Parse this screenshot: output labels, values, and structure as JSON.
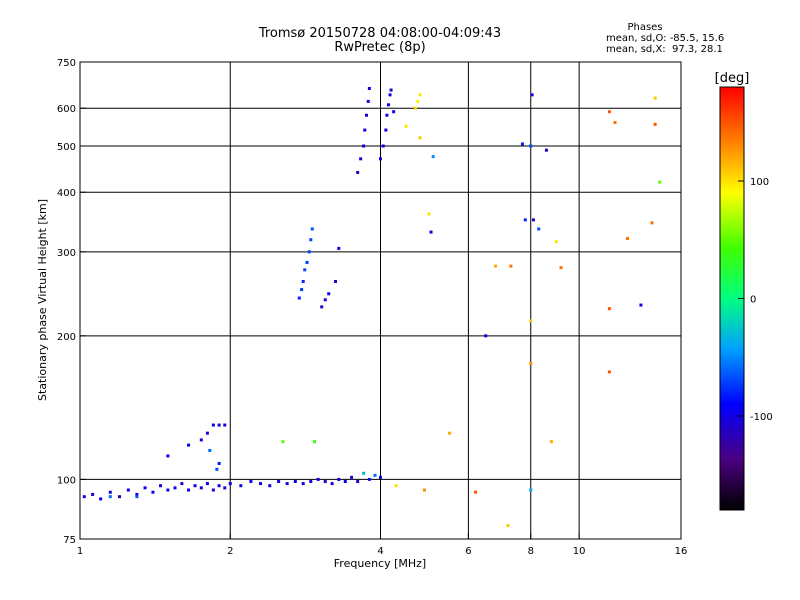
{
  "title_line1": "Tromsø 20150728 04:08:00-04:09:43",
  "title_line2": "RwPretec (8p)",
  "phase_info": {
    "heading": "Phases",
    "line_o": "mean, sd,O: -85.5, 15.6",
    "line_x": "mean, sd,X:  97.3, 28.1"
  },
  "colorbar": {
    "unit_label": "[deg]",
    "ticks": [
      {
        "label": "100",
        "value": 100
      },
      {
        "label": "0",
        "value": 0
      },
      {
        "label": "-100",
        "value": -100
      }
    ],
    "range": [
      -180,
      180
    ]
  },
  "chart_data": {
    "type": "scatter",
    "xlabel": "Frequency [MHz]",
    "ylabel": "Stationary phase Virtual Height [km]",
    "xscale": "log",
    "yscale": "log",
    "xlim": [
      1,
      16
    ],
    "ylim": [
      75,
      750
    ],
    "xticks": [
      {
        "label": "1",
        "value": 1
      },
      {
        "label": "2",
        "value": 2
      },
      {
        "label": "4",
        "value": 4
      },
      {
        "label": "6",
        "value": 6
      },
      {
        "label": "8",
        "value": 8
      },
      {
        "label": "10",
        "value": 10
      },
      {
        "label": "16",
        "value": 16
      }
    ],
    "yticks": [
      {
        "label": "75",
        "value": 75
      },
      {
        "label": "100",
        "value": 100
      },
      {
        "label": "200",
        "value": 200
      },
      {
        "label": "300",
        "value": 300
      },
      {
        "label": "400",
        "value": 400
      },
      {
        "label": "500",
        "value": 500
      },
      {
        "label": "600",
        "value": 600
      },
      {
        "label": "750",
        "value": 750
      }
    ],
    "grid_x": [
      2,
      4,
      6,
      8,
      10
    ],
    "grid_y": [
      100,
      200,
      300,
      400,
      500,
      600
    ],
    "points": [
      [
        1.02,
        92,
        -100
      ],
      [
        1.06,
        93,
        -105
      ],
      [
        1.1,
        91,
        -95
      ],
      [
        1.15,
        94,
        -100
      ],
      [
        1.2,
        92,
        -110
      ],
      [
        1.25,
        95,
        -98
      ],
      [
        1.3,
        93,
        -102
      ],
      [
        1.35,
        96,
        -95
      ],
      [
        1.4,
        94,
        -100
      ],
      [
        1.45,
        97,
        -105
      ],
      [
        1.5,
        95,
        -98
      ],
      [
        1.55,
        96,
        -100
      ],
      [
        1.6,
        98,
        -102
      ],
      [
        1.65,
        95,
        -96
      ],
      [
        1.7,
        97,
        -100
      ],
      [
        1.75,
        96,
        -104
      ],
      [
        1.8,
        98,
        -99
      ],
      [
        1.85,
        95,
        -101
      ],
      [
        1.9,
        97,
        -97
      ],
      [
        1.95,
        96,
        -103
      ],
      [
        2.0,
        98,
        -100
      ],
      [
        2.1,
        97,
        -95
      ],
      [
        2.2,
        99,
        -100
      ],
      [
        2.3,
        98,
        -102
      ],
      [
        2.4,
        97,
        -98
      ],
      [
        2.5,
        99,
        -100
      ],
      [
        2.6,
        98,
        -104
      ],
      [
        2.7,
        99,
        -96
      ],
      [
        2.8,
        98,
        -100
      ],
      [
        2.9,
        99,
        -102
      ],
      [
        3.0,
        100,
        -98
      ],
      [
        3.1,
        99,
        -110
      ],
      [
        3.2,
        98,
        -105
      ],
      [
        3.3,
        100,
        -100
      ],
      [
        3.4,
        99,
        -95
      ],
      [
        3.5,
        101,
        -105
      ],
      [
        3.6,
        99,
        -100
      ],
      [
        3.7,
        103,
        -30
      ],
      [
        3.8,
        100,
        -85
      ],
      [
        3.9,
        102,
        -60
      ],
      [
        4.0,
        101,
        -95
      ],
      [
        1.15,
        92,
        -60
      ],
      [
        1.3,
        92,
        -65
      ],
      [
        1.5,
        112,
        -90
      ],
      [
        1.65,
        118,
        -95
      ],
      [
        1.75,
        121,
        -100
      ],
      [
        1.8,
        125,
        -102
      ],
      [
        1.85,
        130,
        -100
      ],
      [
        1.9,
        130,
        -105
      ],
      [
        1.95,
        130,
        -98
      ],
      [
        1.82,
        115,
        -60
      ],
      [
        1.88,
        105,
        -70
      ],
      [
        1.9,
        108,
        -85
      ],
      [
        2.55,
        120,
        50
      ],
      [
        2.95,
        120,
        40
      ],
      [
        3.05,
        230,
        -110
      ],
      [
        3.1,
        238,
        -105
      ],
      [
        3.15,
        245,
        -95
      ],
      [
        3.25,
        260,
        -105
      ],
      [
        3.3,
        305,
        -100
      ],
      [
        2.75,
        240,
        -80
      ],
      [
        2.78,
        250,
        -75
      ],
      [
        2.8,
        260,
        -80
      ],
      [
        2.82,
        275,
        -70
      ],
      [
        2.85,
        285,
        -75
      ],
      [
        2.88,
        300,
        -70
      ],
      [
        2.9,
        318,
        -72
      ],
      [
        2.92,
        335,
        -68
      ],
      [
        3.6,
        440,
        -110
      ],
      [
        3.65,
        470,
        -105
      ],
      [
        3.7,
        500,
        -102
      ],
      [
        3.72,
        540,
        -100
      ],
      [
        3.75,
        580,
        -105
      ],
      [
        3.78,
        620,
        -100
      ],
      [
        3.8,
        660,
        -102
      ],
      [
        4.0,
        470,
        -105
      ],
      [
        4.05,
        500,
        -100
      ],
      [
        4.1,
        540,
        -102
      ],
      [
        4.12,
        580,
        -100
      ],
      [
        4.15,
        610,
        -98
      ],
      [
        4.18,
        640,
        -100
      ],
      [
        4.2,
        655,
        -102
      ],
      [
        4.25,
        590,
        -95
      ],
      [
        4.5,
        550,
        100
      ],
      [
        4.7,
        600,
        105
      ],
      [
        4.75,
        620,
        95
      ],
      [
        4.8,
        640,
        100
      ],
      [
        4.8,
        520,
        110
      ],
      [
        5.0,
        360,
        100
      ],
      [
        5.05,
        330,
        -100
      ],
      [
        5.1,
        475,
        -50
      ],
      [
        5.5,
        125,
        120
      ],
      [
        6.5,
        200,
        -100
      ],
      [
        6.8,
        280,
        120
      ],
      [
        7.3,
        280,
        140
      ],
      [
        7.7,
        505,
        -80
      ],
      [
        8.0,
        500,
        -70
      ],
      [
        8.05,
        640,
        -100
      ],
      [
        8.1,
        350,
        -110
      ],
      [
        8.3,
        335,
        -70
      ],
      [
        8.6,
        490,
        -110
      ],
      [
        8.8,
        120,
        120
      ],
      [
        9.0,
        315,
        100
      ],
      [
        9.2,
        278,
        140
      ],
      [
        7.8,
        350,
        -80
      ],
      [
        8.0,
        215,
        110
      ],
      [
        8.0,
        175,
        130
      ],
      [
        8.0,
        95,
        -40
      ],
      [
        11.5,
        590,
        150
      ],
      [
        11.8,
        560,
        140
      ],
      [
        11.5,
        228,
        150
      ],
      [
        11.5,
        168,
        150
      ],
      [
        12.5,
        320,
        140
      ],
      [
        13.3,
        232,
        -100
      ],
      [
        14.0,
        345,
        140
      ],
      [
        14.5,
        420,
        50
      ],
      [
        14.2,
        630,
        110
      ],
      [
        14.2,
        555,
        150
      ],
      [
        6.2,
        94,
        150
      ],
      [
        7.2,
        80,
        110
      ],
      [
        4.9,
        95,
        130
      ],
      [
        4.3,
        97,
        100
      ]
    ]
  }
}
